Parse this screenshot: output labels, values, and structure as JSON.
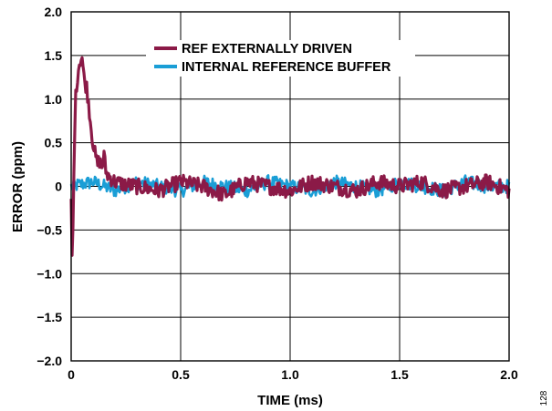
{
  "chart_data": {
    "type": "line",
    "title": "",
    "xlabel": "TIME (ms)",
    "ylabel": "ERROR (ppm)",
    "xlim": [
      0,
      2.0
    ],
    "ylim": [
      -2.0,
      2.0
    ],
    "x_ticks": [
      "0",
      "0.5",
      "1.0",
      "1.5",
      "2.0"
    ],
    "y_ticks": [
      "2.0",
      "1.5",
      "1.0",
      "0.5",
      "0",
      "−0.5",
      "−1.0",
      "−1.5",
      "−2.0"
    ],
    "grid": true,
    "legend_position": "top-center",
    "series": [
      {
        "name": "REF EXTERNALLY DRIVEN",
        "color": "#8b1a47",
        "x": [
          0.0,
          0.005,
          0.01,
          0.015,
          0.02,
          0.03,
          0.04,
          0.05,
          0.06,
          0.07,
          0.08,
          0.09,
          0.1,
          0.11,
          0.12,
          0.13,
          0.14,
          0.15,
          0.16,
          0.18,
          0.2,
          0.25,
          0.3,
          0.4,
          0.5,
          0.6,
          0.7,
          0.8,
          0.9,
          1.0,
          1.1,
          1.2,
          1.3,
          1.4,
          1.5,
          1.6,
          1.7,
          1.8,
          1.9,
          2.0
        ],
        "y": [
          -0.2,
          -0.9,
          -0.3,
          0.6,
          1.0,
          1.3,
          1.45,
          1.48,
          1.2,
          1.15,
          0.95,
          0.7,
          0.5,
          0.35,
          0.25,
          0.3,
          0.2,
          0.35,
          0.15,
          0.1,
          0.05,
          0.02,
          0.0,
          -0.05,
          0.05,
          0.0,
          -0.1,
          0.05,
          0.0,
          -0.05,
          0.05,
          0.0,
          -0.05,
          0.05,
          0.0,
          0.05,
          -0.05,
          0.0,
          0.05,
          -0.05
        ]
      },
      {
        "name": "INTERNAL REFERENCE BUFFER",
        "color": "#1a9ed6",
        "x": [
          0.0,
          0.1,
          0.2,
          0.3,
          0.4,
          0.5,
          0.6,
          0.7,
          0.8,
          0.9,
          1.0,
          1.1,
          1.2,
          1.3,
          1.4,
          1.5,
          1.6,
          1.7,
          1.8,
          1.9,
          2.0
        ],
        "y": [
          0.0,
          0.05,
          -0.05,
          0.05,
          0.0,
          -0.05,
          0.05,
          0.0,
          -0.05,
          0.05,
          0.0,
          -0.05,
          0.05,
          0.0,
          -0.05,
          0.05,
          0.0,
          -0.05,
          0.05,
          0.0,
          0.0
        ]
      }
    ],
    "figure_number": "128"
  }
}
